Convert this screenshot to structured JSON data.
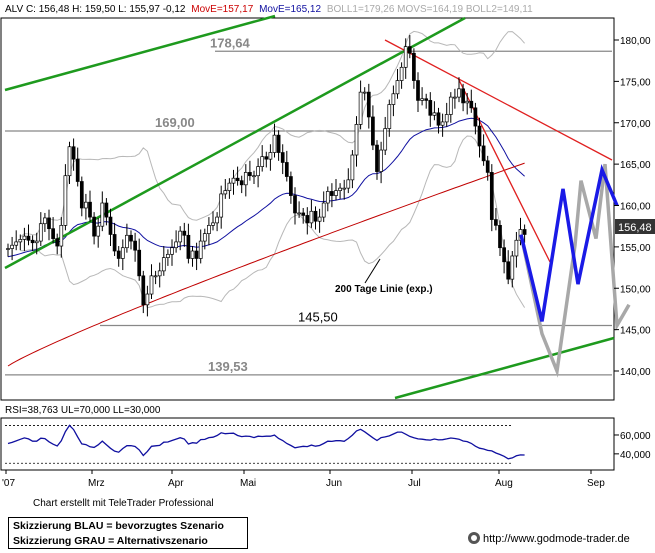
{
  "header": {
    "instrument": "ALV C: 156,48 H: 159,50 L: 155,97 -0,12",
    "ma1": "MovE=157,17",
    "ma2": "MovE=165,12",
    "boll": "BOLL1=179,26 MOVS=164,19 BOLL2=149,11"
  },
  "colors": {
    "trend_green": "#1e9a1e",
    "resistance_red": "#e02020",
    "ma200_red": "#c00000",
    "ma50_blue": "#1010a0",
    "bollinger_gray": "#b8b8b8",
    "scenario_blue": "#1a1ae6",
    "scenario_gray": "#a8a8a8",
    "price_box": "#333333"
  },
  "levels": [
    {
      "value": 178.64,
      "label": "178,64"
    },
    {
      "value": 169.0,
      "label": "169,00"
    },
    {
      "value": 145.5,
      "label": "145,50"
    },
    {
      "value": 139.53,
      "label": "139,53"
    }
  ],
  "annotation_ma": "200 Tage Linie (exp.)",
  "price_tag": "156,48",
  "rsi_header": "RSI=38,763 UL=70,000 LL=30,000",
  "footer": {
    "credit": "Chart erstellt mit TeleTrader Professional",
    "legend_blue": "Skizzierung BLAU = bevorzugtes Szenario",
    "legend_gray": "Skizzierung GRAU = Alternativszenario",
    "url": "http://www.godmode-trader.de"
  },
  "chart_data": {
    "type": "candlestick",
    "x_labels": [
      "'07",
      "Mrz",
      "Apr",
      "Mai",
      "Jun",
      "Jul",
      "Aug",
      "Sep"
    ],
    "y_axis": {
      "ticks": [
        140,
        145,
        150,
        155,
        160,
        165,
        170,
        175,
        180
      ],
      "ylim": [
        136.5,
        182
      ]
    },
    "closes": [
      154.8,
      155.2,
      155.6,
      155.9,
      156.3,
      155.8,
      155.5,
      155.7,
      157.8,
      158.5,
      157.2,
      156.0,
      155.1,
      157.6,
      163.6,
      167.1,
      165.6,
      162.9,
      159.7,
      160.4,
      158.6,
      156.3,
      157.5,
      160.3,
      158.6,
      156.5,
      154.5,
      153.6,
      154.9,
      156.4,
      155.7,
      154.6,
      151.5,
      148.0,
      149.3,
      151.5,
      151.5,
      152.1,
      153.7,
      154.1,
      154.9,
      155.6,
      156.9,
      156.4,
      153.6,
      154.5,
      153.6,
      155.7,
      156.6,
      157.6,
      157.9,
      158.6,
      161.4,
      161.8,
      162.7,
      163.3,
      163.0,
      162.5,
      164.0,
      163.6,
      163.6,
      164.7,
      165.9,
      165.6,
      166.4,
      168.5,
      166.4,
      165.2,
      163.5,
      161.2,
      159.1,
      159.1,
      158.8,
      157.9,
      159.3,
      158.1,
      158.6,
      160.3,
      161.7,
      161.2,
      161.8,
      162.1,
      162.1,
      163.1,
      166.1,
      169.8,
      173.7,
      173.7,
      170.7,
      167.3,
      164.1,
      166.7,
      169.3,
      172.2,
      173.5,
      175.1,
      176.7,
      179.2,
      178.4,
      175.1,
      172.7,
      172.9,
      172.7,
      170.9,
      171.2,
      169.7,
      170.1,
      171.0,
      173.1,
      173.1,
      174.1,
      172.4,
      172.6,
      171.8,
      169.6,
      167.2,
      165.4,
      164.0,
      158.3,
      157.6,
      154.9,
      153.2,
      151.1,
      153.9,
      155.8,
      157.1,
      156.5
    ],
    "bands": {
      "upper_close": 179.26,
      "middle_close": 164.19,
      "lower_close": 149.11
    },
    "ma50_last": 157.17,
    "ma200_last": 165.12,
    "levels": [
      178.64,
      169.0,
      145.5,
      139.53
    ],
    "scenario_blue": [
      [
        0,
        156.48
      ],
      [
        7,
        146.0
      ],
      [
        14,
        162.0
      ],
      [
        19,
        150.5
      ],
      [
        27,
        164.3
      ],
      [
        32,
        160.0
      ]
    ],
    "scenario_gray": [
      [
        0,
        156.48
      ],
      [
        7,
        144.5
      ],
      [
        12,
        140.0
      ],
      [
        18,
        155.2
      ],
      [
        20,
        163.0
      ],
      [
        25,
        156.0
      ],
      [
        28,
        165.0
      ],
      [
        32,
        145.5
      ],
      [
        36,
        148.0
      ]
    ],
    "rsi": {
      "ylim": [
        25,
        78
      ],
      "ticks": [
        40,
        60
      ],
      "tick_labels": [
        "40,000",
        "60,000"
      ],
      "upper": 70,
      "lower": 30,
      "values": [
        51.0,
        52.1,
        53.7,
        55.4,
        56.9,
        55.8,
        53.4,
        53.4,
        56.6,
        56.2,
        52.8,
        50.2,
        48.3,
        53.8,
        63.6,
        70.2,
        65.7,
        57.9,
        50.5,
        49.8,
        47.5,
        46.8,
        49.6,
        53.5,
        49.7,
        45.9,
        42.9,
        41.7,
        45.7,
        48.6,
        48.7,
        47.8,
        44.2,
        38.3,
        42.6,
        48.0,
        48.5,
        49.0,
        52.4,
        52.6,
        54.1,
        55.6,
        57.1,
        55.7,
        50.4,
        51.8,
        51.3,
        55.1,
        55.3,
        57.2,
        57.7,
        59.4,
        62.3,
        61.4,
        61.7,
        61.9,
        59.5,
        58.3,
        58.8,
        58.5,
        57.2,
        58.7,
        58.4,
        58.7,
        58.7,
        59.9,
        56.3,
        54.2,
        51.0,
        48.8,
        46.4,
        47.3,
        48.0,
        47.7,
        49.3,
        48.1,
        48.9,
        51.0,
        53.4,
        53.2,
        53.9,
        53.9,
        53.3,
        56.3,
        59.9,
        64.3,
        66.0,
        63.4,
        60.2,
        57.0,
        54.1,
        57.2,
        58.0,
        59.0,
        61.0,
        63.1,
        63.1,
        60.8,
        58.5,
        57.1,
        55.8,
        55.5,
        54.9,
        54.6,
        55.7,
        54.8,
        55.0,
        55.8,
        56.8,
        56.3,
        55.5,
        53.6,
        53.0,
        51.1,
        48.1,
        46.0,
        45.1,
        43.7,
        43.1,
        40.9,
        39.3,
        37.4,
        34.7,
        35.7,
        37.9,
        38.9,
        38.8
      ]
    }
  }
}
